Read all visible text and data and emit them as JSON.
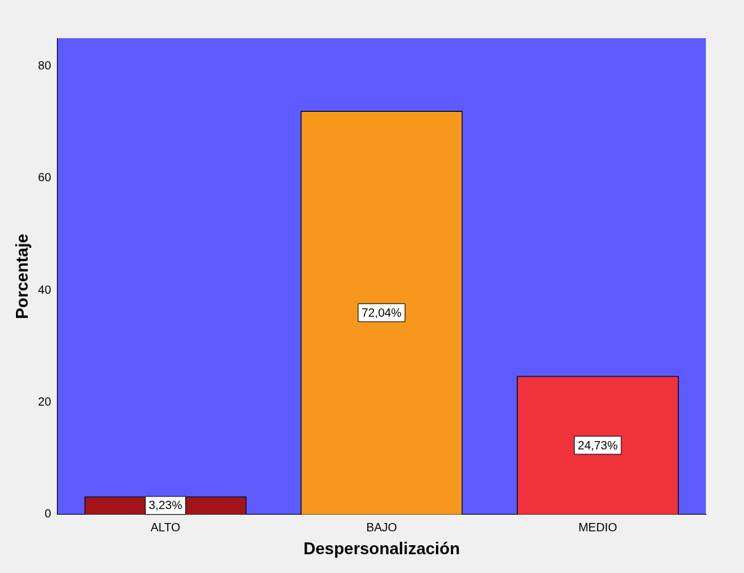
{
  "chart_data": {
    "type": "bar",
    "xlabel": "Despersonalización",
    "ylabel": "Porcentaje",
    "categories": [
      "ALTO",
      "BAJO",
      "MEDIO"
    ],
    "values": [
      3.23,
      72.04,
      24.73
    ],
    "colors": [
      "#a31419",
      "#f7981d",
      "#f0333a"
    ],
    "value_labels": [
      "3,23%",
      "72,04%",
      "24,73%"
    ],
    "ylim": [
      0,
      85
    ],
    "yticks": [
      0,
      20,
      40,
      60,
      80
    ],
    "grid": false,
    "legend": false
  }
}
